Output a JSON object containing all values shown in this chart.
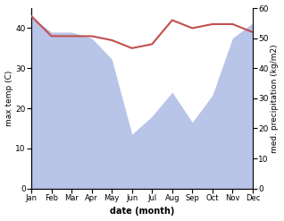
{
  "months": [
    "Jan",
    "Feb",
    "Mar",
    "Apr",
    "May",
    "Jun",
    "Jul",
    "Aug",
    "Sep",
    "Oct",
    "Nov",
    "Dec"
  ],
  "max_temp": [
    43,
    38,
    38,
    38,
    37,
    35,
    36,
    42,
    40,
    41,
    41,
    39
  ],
  "precipitation": [
    57,
    52,
    52,
    50,
    43,
    18,
    24,
    32,
    22,
    31,
    50,
    55
  ],
  "temp_color": "#c0504d",
  "precip_fill_color": "#b8c4e8",
  "temp_ylim": [
    0,
    45
  ],
  "precip_ylim": [
    0,
    60
  ],
  "temp_yticks": [
    0,
    10,
    20,
    30,
    40
  ],
  "precip_yticks": [
    0,
    10,
    20,
    30,
    40,
    50,
    60
  ],
  "xlabel": "date (month)",
  "ylabel_left": "max temp (C)",
  "ylabel_right": "med. precipitation (kg/m2)"
}
